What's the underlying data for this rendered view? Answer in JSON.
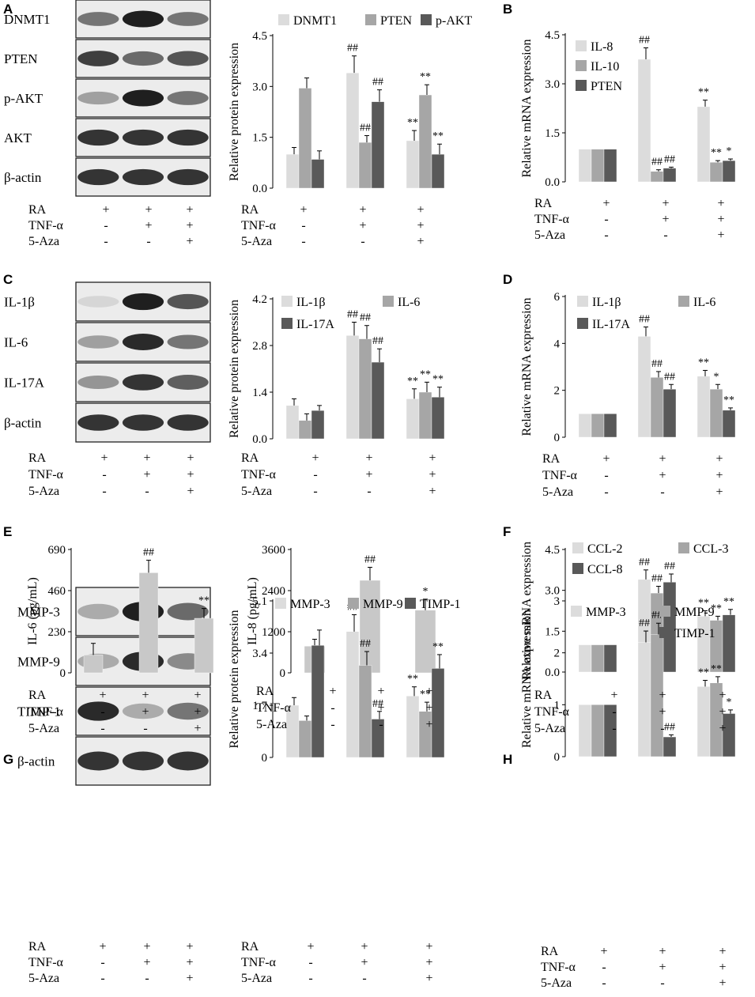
{
  "colors": {
    "light": "#dcdcdc",
    "mid": "#a6a6a6",
    "dark": "#595959",
    "single": "#c8c8c8"
  },
  "conditions": {
    "rows": [
      "RA",
      "TNF-α",
      "5-Aza"
    ],
    "values": [
      [
        "+",
        "+",
        "+"
      ],
      [
        "-",
        "+",
        "+"
      ],
      [
        "-",
        "-",
        "+"
      ]
    ]
  },
  "blots": [
    {
      "panel": "A",
      "bands": [
        {
          "label": "DNMT1",
          "intensity": [
            0.55,
            0.95,
            0.55
          ]
        },
        {
          "label": "PTEN",
          "intensity": [
            0.8,
            0.6,
            0.7
          ]
        },
        {
          "label": "p-AKT",
          "intensity": [
            0.35,
            0.95,
            0.55
          ]
        },
        {
          "label": "AKT",
          "intensity": [
            0.85,
            0.85,
            0.85
          ]
        },
        {
          "label": "β-actin",
          "intensity": [
            0.85,
            0.85,
            0.85
          ]
        }
      ]
    },
    {
      "panel": "C",
      "bands": [
        {
          "label": "IL-1β",
          "intensity": [
            0.1,
            0.95,
            0.7
          ]
        },
        {
          "label": "IL-6",
          "intensity": [
            0.35,
            0.9,
            0.55
          ]
        },
        {
          "label": "IL-17A",
          "intensity": [
            0.4,
            0.85,
            0.65
          ]
        },
        {
          "label": "β-actin",
          "intensity": [
            0.85,
            0.85,
            0.85
          ]
        }
      ]
    },
    {
      "panel": "G",
      "bands": [
        {
          "label": "MMP-3",
          "intensity": [
            0.3,
            0.95,
            0.6
          ]
        },
        {
          "label": "MMP-9",
          "intensity": [
            0.3,
            0.9,
            0.45
          ]
        },
        {
          "label": "TIMP-1",
          "intensity": [
            0.9,
            0.3,
            0.55
          ]
        },
        {
          "label": "β-actin",
          "intensity": [
            0.85,
            0.85,
            0.85
          ]
        }
      ]
    }
  ],
  "chart_data": [
    {
      "panel": "A",
      "type": "bar",
      "ylabel": "Relative protein expression",
      "ylim": [
        0,
        4.5
      ],
      "yticks": [
        "0.0",
        "1.5",
        "3.0",
        "4.5"
      ],
      "ytick_values": [
        0,
        1.5,
        3.0,
        4.5
      ],
      "legend": "top",
      "groups": 3,
      "series": [
        {
          "name": "DNMT1",
          "color": "light",
          "values": [
            1.0,
            3.4,
            1.4
          ],
          "errors": [
            0.2,
            0.5,
            0.3
          ],
          "annotations": [
            "",
            "##",
            "**"
          ]
        },
        {
          "name": "PTEN",
          "color": "mid",
          "values": [
            2.95,
            1.35,
            2.75
          ],
          "errors": [
            0.3,
            0.2,
            0.3
          ],
          "annotations": [
            "",
            "##",
            "**"
          ]
        },
        {
          "name": "p-AKT",
          "color": "dark",
          "values": [
            0.85,
            2.55,
            1.0
          ],
          "errors": [
            0.25,
            0.35,
            0.3
          ],
          "annotations": [
            "",
            "##",
            "**"
          ]
        }
      ]
    },
    {
      "panel": "B",
      "type": "bar",
      "ylabel": "Relative mRNA expression",
      "ylim": [
        0,
        4.5
      ],
      "yticks": [
        "0.0",
        "1.5",
        "3.0",
        "4.5"
      ],
      "ytick_values": [
        0,
        1.5,
        3.0,
        4.5
      ],
      "legend": "top-left",
      "groups": 3,
      "series": [
        {
          "name": "IL-8",
          "color": "light",
          "values": [
            1.0,
            3.75,
            2.3
          ],
          "errors": [
            0,
            0.35,
            0.2
          ],
          "annotations": [
            "",
            "##",
            "**"
          ]
        },
        {
          "name": "IL-10",
          "color": "mid",
          "values": [
            1.0,
            0.32,
            0.6
          ],
          "errors": [
            0,
            0.05,
            0.05
          ],
          "annotations": [
            "",
            "##",
            "**"
          ]
        },
        {
          "name": "PTEN",
          "color": "dark",
          "values": [
            1.0,
            0.42,
            0.65
          ],
          "errors": [
            0,
            0.03,
            0.05
          ],
          "annotations": [
            "",
            "##",
            "*"
          ]
        }
      ]
    },
    {
      "panel": "C",
      "type": "bar",
      "ylabel": "Relative protein expression",
      "ylim": [
        0,
        4.2
      ],
      "yticks": [
        "0.0",
        "1.4",
        "2.8",
        "4.2"
      ],
      "ytick_values": [
        0,
        1.4,
        2.8,
        4.2
      ],
      "legend": "top",
      "groups": 3,
      "series": [
        {
          "name": "IL-1β",
          "color": "light",
          "values": [
            1.0,
            3.1,
            1.2
          ],
          "errors": [
            0.2,
            0.4,
            0.3
          ],
          "annotations": [
            "",
            "##",
            "**"
          ]
        },
        {
          "name": "IL-6",
          "color": "mid",
          "values": [
            0.55,
            3.0,
            1.4
          ],
          "errors": [
            0.2,
            0.4,
            0.3
          ],
          "annotations": [
            "",
            "##",
            "**"
          ]
        },
        {
          "name": "IL-17A",
          "color": "dark",
          "values": [
            0.85,
            2.3,
            1.25
          ],
          "errors": [
            0.15,
            0.4,
            0.3
          ],
          "annotations": [
            "",
            "##",
            "**"
          ]
        }
      ]
    },
    {
      "panel": "D",
      "type": "bar",
      "ylabel": "Relative mRNA expression",
      "ylim": [
        0,
        6
      ],
      "yticks": [
        "0",
        "2",
        "4",
        "6"
      ],
      "ytick_values": [
        0,
        2,
        4,
        6
      ],
      "legend": "top",
      "groups": 3,
      "series": [
        {
          "name": "IL-1β",
          "color": "light",
          "values": [
            1.0,
            4.3,
            2.6
          ],
          "errors": [
            0,
            0.4,
            0.25
          ],
          "annotations": [
            "",
            "##",
            "**"
          ]
        },
        {
          "name": "IL-6",
          "color": "mid",
          "values": [
            1.0,
            2.55,
            2.05
          ],
          "errors": [
            0,
            0.25,
            0.2
          ],
          "annotations": [
            "",
            "##",
            "*"
          ]
        },
        {
          "name": "IL-17A",
          "color": "dark",
          "values": [
            1.0,
            2.05,
            1.15
          ],
          "errors": [
            0,
            0.2,
            0.1
          ],
          "annotations": [
            "",
            "##",
            "**"
          ]
        }
      ]
    },
    {
      "panel": "E1",
      "type": "bar",
      "ylabel": "IL-6 (pg/mL)",
      "ylim": [
        0,
        690
      ],
      "yticks": [
        "0",
        "230",
        "460",
        "690"
      ],
      "ytick_values": [
        0,
        230,
        460,
        690
      ],
      "legend": "none",
      "groups": 3,
      "series": [
        {
          "name": "",
          "color": "single",
          "values": [
            100,
            560,
            305
          ],
          "errors": [
            65,
            70,
            55
          ],
          "annotations": [
            "",
            "##",
            "**"
          ]
        }
      ]
    },
    {
      "panel": "E2",
      "type": "bar",
      "ylabel": "IL-8 (pg/mL)",
      "ylim": [
        0,
        3600
      ],
      "yticks": [
        "0",
        "1200",
        "2400",
        "3600"
      ],
      "ytick_values": [
        0,
        1200,
        2400,
        3600
      ],
      "legend": "none",
      "groups": 3,
      "series": [
        {
          "name": "",
          "color": "single",
          "values": [
            780,
            2700,
            1830
          ],
          "errors": [
            200,
            380,
            320
          ],
          "annotations": [
            "",
            "##",
            "*"
          ]
        }
      ]
    },
    {
      "panel": "F",
      "type": "bar",
      "ylabel": "Relative mRNA expression",
      "ylim": [
        0,
        4.5
      ],
      "yticks": [
        "0.0",
        "1.5",
        "3.0",
        "4.5"
      ],
      "ytick_values": [
        0,
        1.5,
        3.0,
        4.5
      ],
      "legend": "top",
      "groups": 3,
      "series": [
        {
          "name": "CCL-2",
          "color": "light",
          "values": [
            1.0,
            3.4,
            2.05
          ],
          "errors": [
            0,
            0.35,
            0.2
          ],
          "annotations": [
            "",
            "##",
            "**"
          ]
        },
        {
          "name": "CCL-3",
          "color": "mid",
          "values": [
            1.0,
            2.9,
            1.9
          ],
          "errors": [
            0,
            0.25,
            0.15
          ],
          "annotations": [
            "",
            "##",
            "**"
          ]
        },
        {
          "name": "CCL-8",
          "color": "dark",
          "values": [
            1.0,
            3.3,
            2.1
          ],
          "errors": [
            0,
            0.3,
            0.2
          ],
          "annotations": [
            "",
            "##",
            "**"
          ]
        }
      ]
    },
    {
      "panel": "G",
      "type": "bar",
      "ylabel": "Relative protein expression",
      "ylim": [
        0,
        5.1
      ],
      "yticks": [
        "0",
        "1.7",
        "3.4",
        "5.1"
      ],
      "ytick_values": [
        0,
        1.7,
        3.4,
        5.1
      ],
      "legend": "top",
      "groups": 3,
      "series": [
        {
          "name": "MMP-3",
          "color": "light",
          "values": [
            1.7,
            4.1,
            2.0
          ],
          "errors": [
            0.25,
            0.55,
            0.3
          ],
          "annotations": [
            "",
            "##",
            "**"
          ]
        },
        {
          "name": "MMP-9",
          "color": "mid",
          "values": [
            1.2,
            3.0,
            1.5
          ],
          "errors": [
            0.15,
            0.45,
            0.3
          ],
          "annotations": [
            "",
            "##",
            "**"
          ]
        },
        {
          "name": "TIMP-1",
          "color": "dark",
          "values": [
            3.65,
            1.25,
            2.9
          ],
          "errors": [
            0.5,
            0.25,
            0.45
          ],
          "annotations": [
            "",
            "##",
            "**"
          ]
        }
      ]
    },
    {
      "panel": "H",
      "type": "bar",
      "ylabel": "Relative mRNA expression",
      "ylim": [
        0,
        3
      ],
      "yticks": [
        "0",
        "1",
        "2",
        "3"
      ],
      "ytick_values": [
        0,
        1,
        2,
        3
      ],
      "legend": "top",
      "groups": 3,
      "series": [
        {
          "name": "MMP-3",
          "color": "light",
          "values": [
            1.0,
            2.2,
            1.35
          ],
          "errors": [
            0,
            0.22,
            0.12
          ],
          "annotations": [
            "",
            "##",
            "**"
          ]
        },
        {
          "name": "MMP-9",
          "color": "mid",
          "values": [
            1.0,
            2.35,
            1.42
          ],
          "errors": [
            0,
            0.22,
            0.12
          ],
          "annotations": [
            "",
            "##",
            "**"
          ]
        },
        {
          "name": "TIMP-1",
          "color": "dark",
          "values": [
            1.0,
            0.38,
            0.83
          ],
          "errors": [
            0,
            0.04,
            0.07
          ],
          "annotations": [
            "",
            "##",
            "*"
          ]
        }
      ]
    }
  ]
}
